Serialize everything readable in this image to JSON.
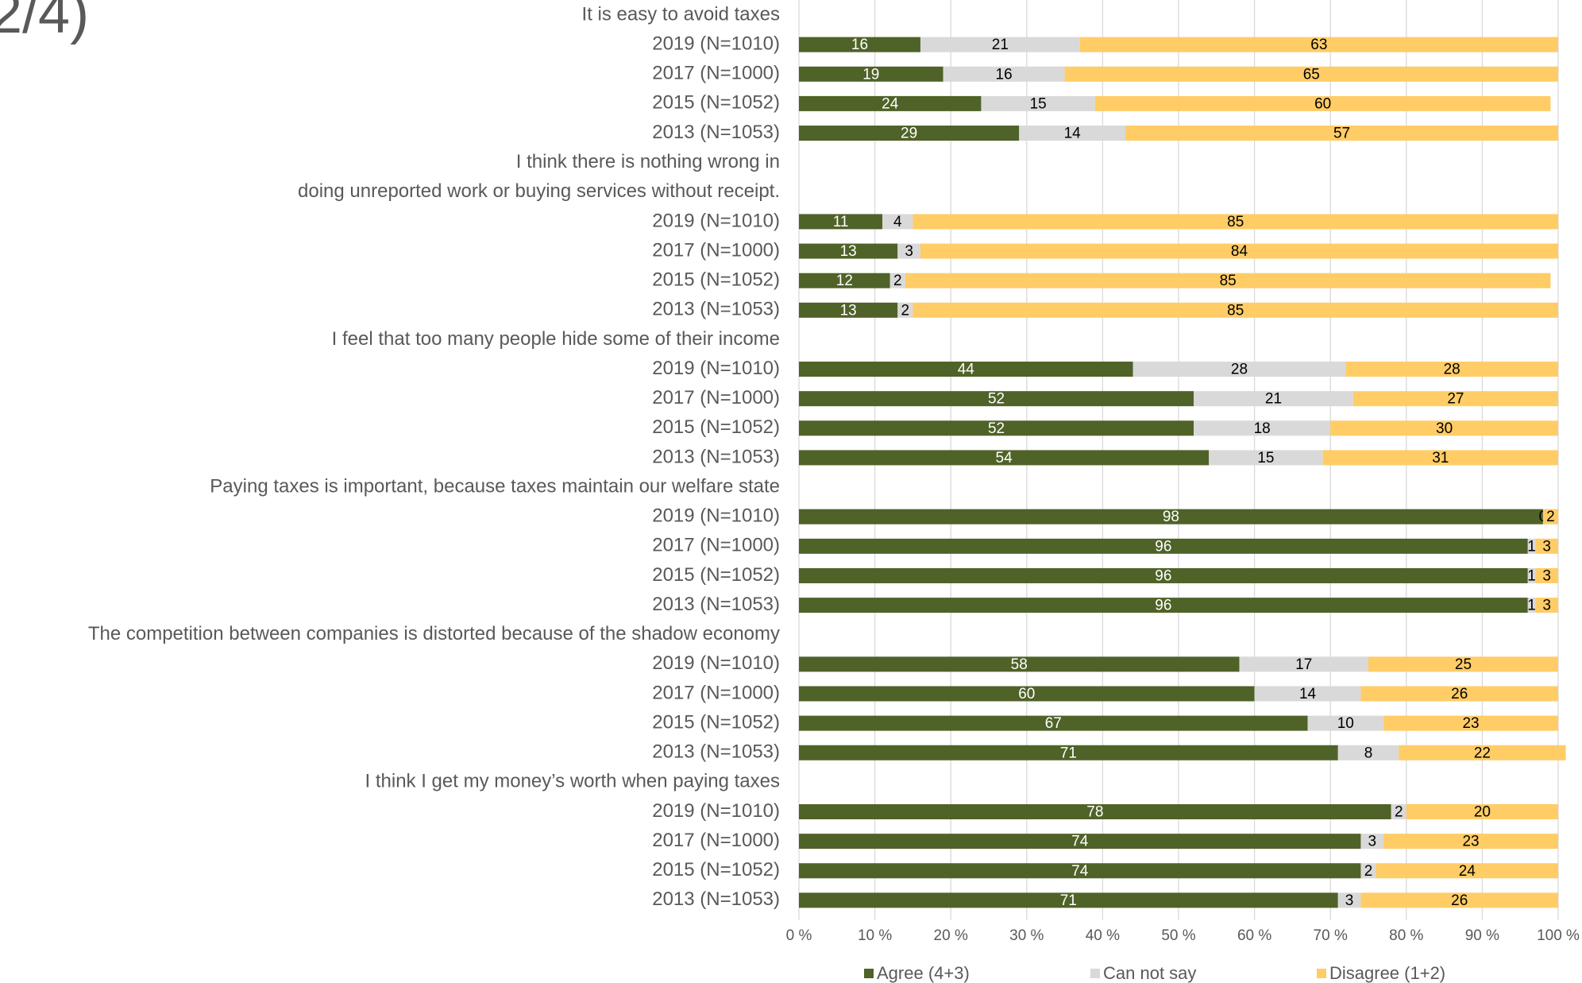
{
  "chart_data": {
    "type": "stacked_bar_horizontal",
    "title": "2/4)",
    "categories": [
      "It is easy to avoid taxes",
      "2019 (N=1010)",
      "2017 (N=1000)",
      "2015 (N=1052)",
      "2013 (N=1053)",
      "I think there is nothing wrong in",
      "doing unreported work or buying services without receipt.",
      "2019 (N=1010)",
      "2017 (N=1000)",
      "2015 (N=1052)",
      "2013 (N=1053)",
      "I feel that too many people hide some of their income",
      "2019 (N=1010)",
      "2017 (N=1000)",
      "2015 (N=1052)",
      "2013 (N=1053)",
      "Paying taxes is important, because taxes maintain our welfare state",
      "2019 (N=1010)",
      "2017 (N=1000)",
      "2015 (N=1052)",
      "2013 (N=1053)",
      "The competition between companies is distorted because of the shadow economy",
      "2019 (N=1010)",
      "2017 (N=1000)",
      "2015 (N=1052)",
      "2013 (N=1053)",
      "I think I get my money’s worth when paying taxes",
      "2019 (N=1010)",
      "2017 (N=1000)",
      "2015 (N=1052)",
      "2013 (N=1053)"
    ],
    "series": [
      {
        "name": "Agree (4+3)",
        "color": "#4f6228",
        "label_color": "#ffffff",
        "values": [
          null,
          16,
          19,
          24,
          29,
          null,
          null,
          11,
          13,
          12,
          13,
          null,
          44,
          52,
          52,
          54,
          null,
          98,
          96,
          96,
          96,
          null,
          58,
          60,
          67,
          71,
          null,
          78,
          74,
          74,
          71
        ]
      },
      {
        "name": "Can not say",
        "color": "#d9d9d9",
        "label_color": "#000000",
        "values": [
          null,
          21,
          16,
          15,
          14,
          null,
          null,
          4,
          3,
          2,
          2,
          null,
          28,
          21,
          18,
          15,
          null,
          0,
          1,
          1,
          1,
          null,
          17,
          14,
          10,
          8,
          null,
          2,
          3,
          2,
          3
        ]
      },
      {
        "name": "Disagree (1+2)",
        "color": "#ffcc66",
        "label_color": "#000000",
        "values": [
          null,
          63,
          65,
          60,
          57,
          null,
          null,
          85,
          84,
          85,
          85,
          null,
          28,
          27,
          30,
          31,
          null,
          2,
          3,
          3,
          3,
          null,
          25,
          26,
          23,
          22,
          null,
          20,
          23,
          24,
          26
        ]
      }
    ],
    "xlim": [
      0,
      100
    ],
    "xticks": [
      {
        "value": 0,
        "label": "0 %"
      },
      {
        "value": 10,
        "label": "10 %"
      },
      {
        "value": 20,
        "label": "20 %"
      },
      {
        "value": 30,
        "label": "30 %"
      },
      {
        "value": 40,
        "label": "40 %"
      },
      {
        "value": 50,
        "label": "50 %"
      },
      {
        "value": 60,
        "label": "60 %"
      },
      {
        "value": 70,
        "label": "70 %"
      },
      {
        "value": 80,
        "label": "80 %"
      },
      {
        "value": 90,
        "label": "90 %"
      },
      {
        "value": 100,
        "label": "100 %"
      }
    ],
    "grid": true,
    "legend": "bottom"
  }
}
